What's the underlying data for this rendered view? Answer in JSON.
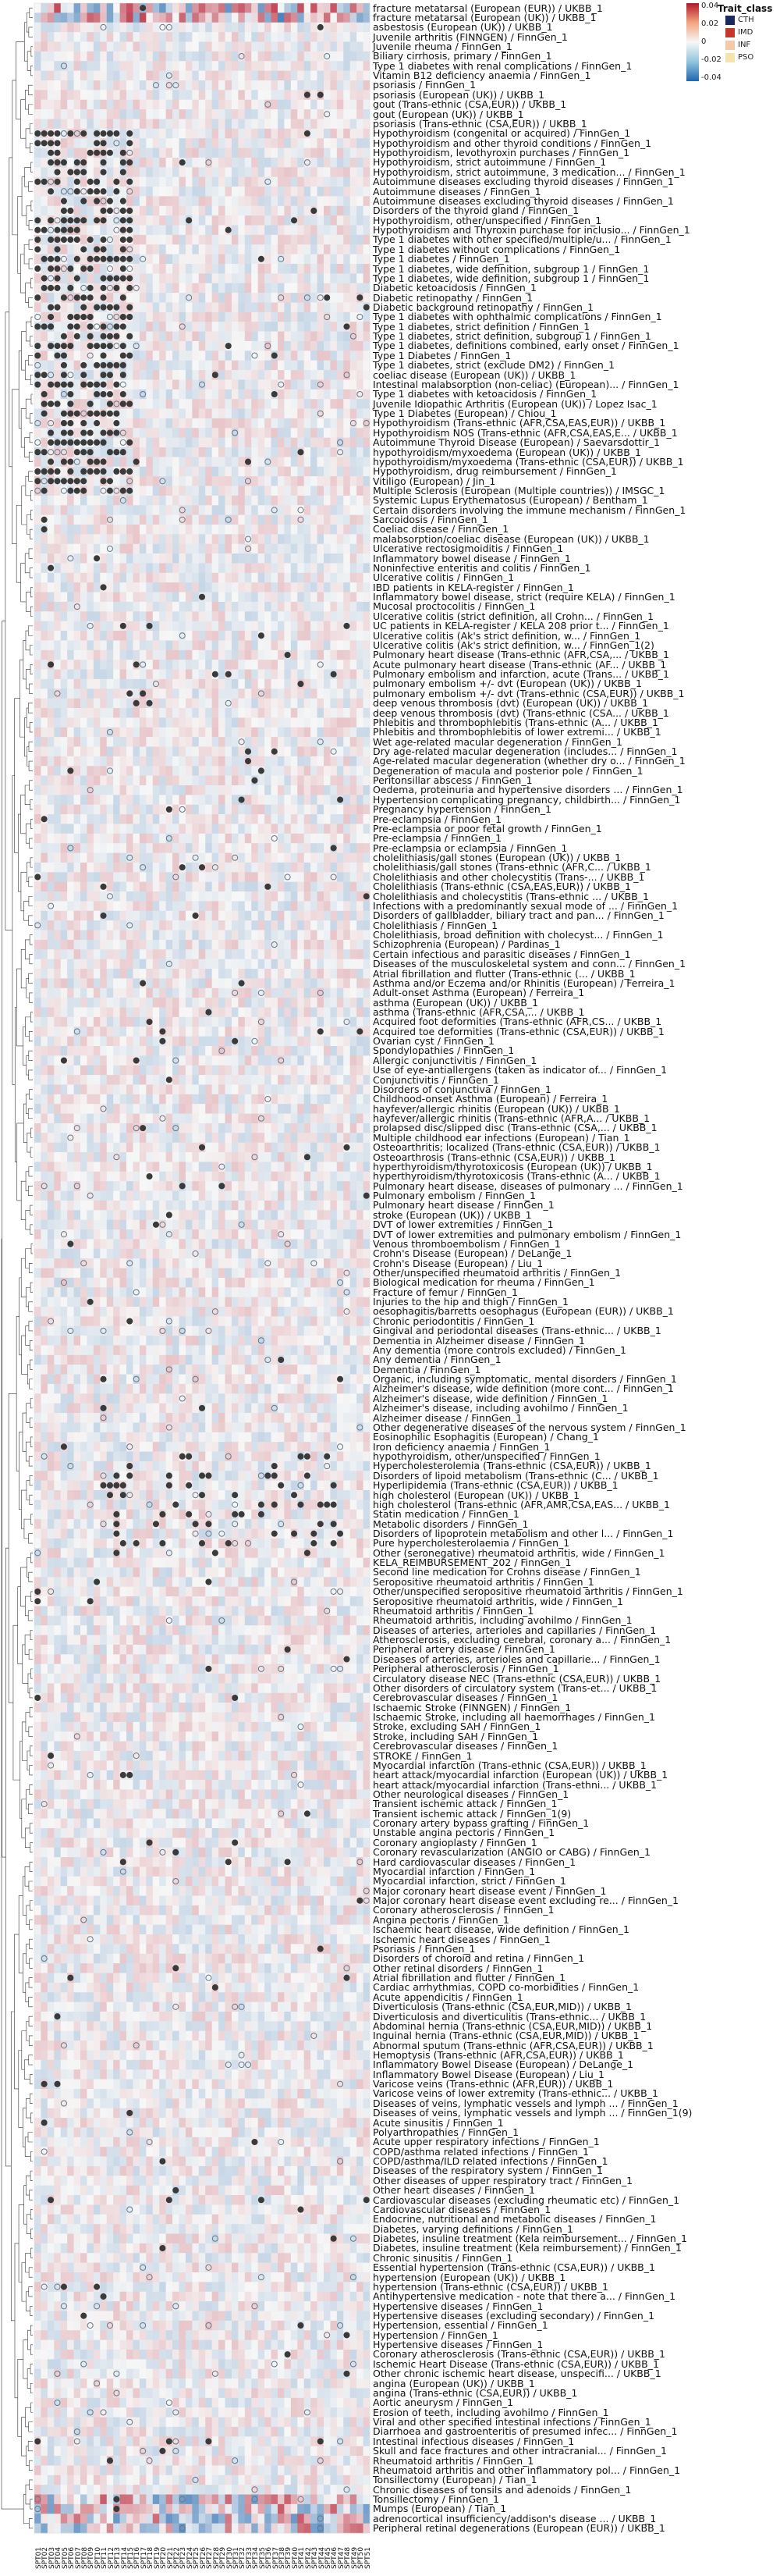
{
  "chart_data": {
    "type": "heatmap",
    "legend_title": "Trait_class",
    "colorbar_ticks": [
      "0.04",
      "0.02",
      "0",
      "-0.02",
      "-0.04"
    ],
    "legend": [
      {
        "name": "CTH",
        "color": "#1a2a5c"
      },
      {
        "name": "IMD",
        "color": "#c0392b"
      },
      {
        "name": "INF",
        "color": "#f3c9a8"
      },
      {
        "name": "PSO",
        "color": "#f5e3b0"
      }
    ],
    "column_prefix": "SPT",
    "n_columns": 51,
    "rows": [
      "fracture metatarsal (European (EUR)) / UKBB_1",
      "fracture metatarsal (European (UK)) / UKBB_1",
      "asbestosis (European (UK)) / UKBB_1",
      "Juvenile arthritis (FINNGEN) / FinnGen_1",
      "Juvenile rheuma / FinnGen_1",
      "Biliary cirrhosis, primary / FinnGen_1",
      "Type 1 diabetes with renal complications / FinnGen_1",
      "Vitamin B12 deficiency anaemia / FinnGen_1",
      "psoriasis / FinnGen_1",
      "psoriasis (European (UK)) / UKBB_1",
      "gout (Trans-ethnic (CSA,EUR)) / UKBB_1",
      "gout (European (UK)) / UKBB_1",
      "psoriasis (Trans-ethnic (CSA,EUR)) / UKBB_1",
      "Hypothyroidism (congenital or acquired) / FinnGen_1",
      "Hypothyroidism and other thyroid conditions / FinnGen_1",
      "Hypothyroidism, levothyroxin purchases / FinnGen_1",
      "Hypothyroidism, strict autoimmune / FinnGen_1",
      "Hypothyroidism, strict autoimmune, 3 medication... / FinnGen_1",
      "Autoimmune diseases excluding thyroid diseases / FinnGen_1",
      "Autoimmune diseases / FinnGen_1",
      "Autoimmune diseases excluding thyroid diseases / FinnGen_1",
      "Disorders of the thyroid gland / FinnGen_1",
      "Hypothyroidism, other/unspecified / FinnGen_1",
      "Hypothyroidism and Thyroxin purchase for inclusio... / FinnGen_1",
      "Type 1 diabetes with other specified/multiple/u... / FinnGen_1",
      "Type 1 diabetes without complications / FinnGen_1",
      "Type 1 diabetes / FinnGen_1",
      "Type 1 diabetes, wide definition, subgroup 1 / FinnGen_1",
      "Type 1 diabetes, wide definition, subgroup 1 / FinnGen_1",
      "Diabetic ketoacidosis / FinnGen_1",
      "Diabetic retinopathy / FinnGen_1",
      "Diabetic background retinopathy / FinnGen_1",
      "Type 1 diabetes with ophthalmic complications / FinnGen_1",
      "Type 1 diabetes, strict definition / FinnGen_1",
      "Type 1 diabetes, strict definition, subgroup 1 / FinnGen_1",
      "Type 1 diabetes, definitions combined, early onset / FinnGen_1",
      "Type 1 Diabetes / FinnGen_1",
      "Type 1 diabetes, strict (exclude DM2) / FinnGen_1",
      "coeliac disease (European (UK)) / UKBB_1",
      "Intestinal malabsorption (non-celiac) (European)... / FinnGen_1",
      "Type 1 diabetes with ketoacidosis / FinnGen_1",
      "Juvenile Idiopathic Arthritis (European (UK)) / Lopez Isac_1",
      "Type 1 Diabetes (European) / Chiou_1",
      "Hypothyroidism (Trans-ethnic (AFR,CSA,EAS,EUR)) / UKBB_1",
      "Hypothyroidism NOS (Trans-ethnic (AFR,CSA,EAS,E... / UKBB_1",
      "Autoimmune Thyroid Disease (European) / Saevarsdottir_1",
      "hypothyroidism/myxoedema (European (UK)) / UKBB_1",
      "hypothyroidism/myxoedema (Trans-ethnic (CSA,EUR)) / UKBB_1",
      "Hypothyroidism, drug reimbursement / FinnGen_1",
      "Vitiligo (European) / Jin_1",
      "Multiple Sclerosis (European (Multiple countries)) / IMSGC_1",
      "Systemic Lupus Erythematosus (European) / Bentham_1",
      "Certain disorders involving the immune mechanism / FinnGen_1",
      "Sarcoidosis / FinnGen_1",
      "Coeliac disease / FinnGen_1",
      "malabsorption/coeliac disease (European (UK)) / UKBB_1",
      "Ulcerative rectosigmoiditis / FinnGen_1",
      "Inflammatory bowel disease / FinnGen_1",
      "Noninfective enteritis and colitis / FinnGen_1",
      "Ulcerative colitis / FinnGen_1",
      "IBD patients in KELA-register / FinnGen_1",
      "Inflammatory bowel disease, strict (require KELA) / FinnGen_1",
      "Mucosal proctocolitis / FinnGen_1",
      "Ulcerative colitis (strict definition, all Crohn... / FinnGen_1",
      "UC patients in KELA-register / KELA 208 prior t... / FinnGen_1",
      "Ulcerative colitis (Ak's strict definition, w... / FinnGen_1",
      "Ulcerative colitis (Ak's strict definition, w... / FinnGen_1(2)",
      "Pulmonary heart disease (Trans-ethnic (AFR,CSA,... / UKBB_1",
      "Acute pulmonary heart disease (Trans-ethnic (AF... / UKBB_1",
      "Pulmonary embolism and infarction, acute (Trans... / UKBB_1",
      "pulmonary embolism +/- dvt (European (UK)) / UKBB_1",
      "pulmonary embolism +/- dvt (Trans-ethnic (CSA,EUR)) / UKBB_1",
      "deep venous thrombosis (dvt) (European (UK)) / UKBB_1",
      "deep venous thrombosis (dvt) (Trans-ethnic (CSA... / UKBB_1",
      "Phlebitis and thrombophlebitis (Trans-ethnic (A... / UKBB_1",
      "Phlebitis and thrombophlebitis of lower extremi... / UKBB_1",
      "Wet age-related macular degeneration / FinnGen_1",
      "Dry age-related macular degeneration (includes... / FinnGen_1",
      "Age-related macular degeneration (whether dry o... / FinnGen_1",
      "Degeneration of macula and posterior pole / FinnGen_1",
      "Peritonsillar abscess / FinnGen_1",
      "Oedema, proteinuria and hypertensive disorders ... / FinnGen_1",
      "Hypertension complicating pregnancy, childbirth... / FinnGen_1",
      "Pregnancy hypertension / FinnGen_1",
      "Pre-eclampsia / FinnGen_1",
      "Pre-eclampsia or poor fetal growth / FinnGen_1",
      "Pre-eclampsia / FinnGen_1",
      "Pre-eclampsia or eclampsia / FinnGen_1",
      "cholelithiasis/gall stones (European (UK)) / UKBB_1",
      "cholelithiasis/gall stones (Trans-ethnic (AFR,C... / UKBB_1",
      "Cholelithiasis and other cholecystitis (Trans-... / UKBB_1",
      "Cholelithiasis (Trans-ethnic (CSA,EAS,EUR)) / UKBB_1",
      "Cholelithiasis and cholecystitis (Trans-ethnic ... / UKBB_1",
      "Infections with a predominantly sexual mode of ... / FinnGen_1",
      "Disorders of gallbladder, biliary tract and pan... / FinnGen_1",
      "Cholelithiasis / FinnGen_1",
      "Cholelithiasis, broad definition with cholecyst... / FinnGen_1",
      "Schizophrenia (European) / Pardinas_1",
      "Certain infectious and parasitic diseases / FinnGen_1",
      "Diseases of the musculoskeletal system and conn... / FinnGen_1",
      "Atrial fibrillation and flutter (Trans-ethnic (... / UKBB_1",
      "Asthma and/or Eczema and/or Rhinitis (European) / Ferreira_1",
      "Adult-onset Asthma (European) / Ferreira_1",
      "asthma (European (UK)) / UKBB_1",
      "asthma (Trans-ethnic (AFR,CSA,... / UKBB_1",
      "Acquired foot deformities (Trans-ethnic (AFR,CS... / UKBB_1",
      "Acquired toe deformities (Trans-ethnic (CSA,EUR)) / UKBB_1",
      "Ovarian cyst / FinnGen_1",
      "Spondylopathies / FinnGen_1",
      "Allergic conjunctivitis / FinnGen_1",
      "Use of eye-antiallergens (taken as indicator of... / FinnGen_1",
      "Conjunctivitis / FinnGen_1",
      "Disorders of conjunctiva / FinnGen_1",
      "Childhood-onset Asthma (European) / Ferreira_1",
      "hayfever/allergic rhinitis (European (UK)) / UKBB_1",
      "hayfever/allergic rhinitis (Trans-ethnic (AFR,A... / UKBB_1",
      "prolapsed disc/slipped disc (Trans-ethnic (CSA,... / UKBB_1",
      "Multiple childhood ear infections (European) / Tian_1",
      "Osteoarthritis; localized (Trans-ethnic (CSA,EUR)) / UKBB_1",
      "Osteoarthrosis (Trans-ethnic (CSA,EUR)) / UKBB_1",
      "hyperthyroidism/thyrotoxicosis (European (UK)) / UKBB_1",
      "hyperthyroidism/thyrotoxicosis (Trans-ethnic (A... / UKBB_1",
      "Pulmonary heart disease, diseases of pulmonary ... / FinnGen_1",
      "Pulmonary embolism / FinnGen_1",
      "Pulmonary heart disease / FinnGen_1",
      "stroke (European (UK)) / UKBB_1",
      "DVT of lower extremities / FinnGen_1",
      "DVT of lower extremities and pulmonary embolism / FinnGen_1",
      "Venous thromboembolism / FinnGen_1",
      "Crohn's Disease (European) / DeLange_1",
      "Crohn's Disease (European) / Liu_1",
      "Other/unspecified rheumatoid arthritis / FinnGen_1",
      "Biological medication for rheuma / FinnGen_1",
      "Fracture of femur / FinnGen_1",
      "Injuries to the hip and thigh / FinnGen_1",
      "oesophagitis/barretts oesophagus (European (EUR)) / UKBB_1",
      "Chronic periodontitis / FinnGen_1",
      "Gingival and periodontal diseases (Trans-ethnic... / UKBB_1",
      "Dementia in Alzheimer disease / FinnGen_1",
      "Any dementia (more controls excluded) / FinnGen_1",
      "Any dementia / FinnGen_1",
      "Dementia / FinnGen_1",
      "Organic, including symptomatic, mental disorders / FinnGen_1",
      "Alzheimer's disease, wide definition (more cont... / FinnGen_1",
      "Alzheimer's disease, wide definition / FinnGen_1",
      "Alzheimer's disease, including avohilmo / FinnGen_1",
      "Alzheimer disease / FinnGen_1",
      "Other degenerative diseases of the nervous system / FinnGen_1",
      "Eosinophilic Esophagitis (European) / Chang_1",
      "Iron deficiency anaemia / FinnGen_1",
      "hypothyroidism, other/unspecified / FinnGen_1",
      "Hypercholesterolemia (Trans-ethnic (CSA,EUR)) / UKBB_1",
      "Disorders of lipoid metabolism (Trans-ethnic (C... / UKBB_1",
      "Hyperlipidemia (Trans-ethnic (CSA,EUR)) / UKBB_1",
      "high cholesterol (European (UK)) / UKBB_1",
      "high cholesterol (Trans-ethnic (AFR,AMR,CSA,EAS... / UKBB_1",
      "Statin medication / FinnGen_1",
      "Metabolic disorders / FinnGen_1",
      "Disorders of lipoprotein metabolism and other l... / FinnGen_1",
      "Pure hypercholesterolaemia / FinnGen_1",
      "Other (seronegative) rheumatoid arthritis, wide / FinnGen_1",
      "KELA_REIMBURSEMENT_202 / FinnGen_1",
      "Second line medication for Crohns disease / FinnGen_1",
      "Seropositive rheumatoid arthritis / FinnGen_1",
      "Other/unspecified seropositive rheumatoid arthritis / FinnGen_1",
      "Seropositive rheumatoid arthritis, wide / FinnGen_1",
      "Rheumatoid arthritis / FinnGen_1",
      "Rheumatoid arthritis, including avohilmo / FinnGen_1",
      "Diseases of arteries, arterioles and capillaries / FinnGen_1",
      "Atherosclerosis, excluding cerebral, coronary a... / FinnGen_1",
      "Peripheral artery disease / FinnGen_1",
      "Diseases of arteries, arterioles and capillarie... / FinnGen_1",
      "Peripheral atherosclerosis / FinnGen_1",
      "Circulatory disease NEC (Trans-ethnic (CSA,EUR)) / UKBB_1",
      "Other disorders of circulatory system (Trans-et... / UKBB_1",
      "Cerebrovascular diseases / FinnGen_1",
      "Ischaemic Stroke (FINNGEN) / FinnGen_1",
      "Ischaemic Stroke, including all haemorrhages / FinnGen_1",
      "Stroke, excluding SAH / FinnGen_1",
      "Stroke, including SAH / FinnGen_1",
      "Cerebrovascular diseases / FinnGen_1",
      "STROKE / FinnGen_1",
      "Myocardial infarction (Trans-ethnic (CSA,EUR)) / UKBB_1",
      "heart attack/myocardial infarction (European (UK)) / UKBB_1",
      "heart attack/myocardial infarction (Trans-ethni... / UKBB_1",
      "Other neurological diseases / FinnGen_1",
      "Transient ischemic attack / FinnGen_1",
      "Transient ischemic attack / FinnGen_1(9)",
      "Coronary artery bypass grafting / FinnGen_1",
      "Unstable angina pectoris / FinnGen_1",
      "Coronary angioplasty / FinnGen_1",
      "Coronary revascularization (ANGIO or CABG) / FinnGen_1",
      "Hard cardiovascular diseases / FinnGen_1",
      "Myocardial infarction / FinnGen_1",
      "Myocardial infarction, strict / FinnGen_1",
      "Major coronary heart disease event / FinnGen_1",
      "Major coronary heart disease event excluding re... / FinnGen_1",
      "Coronary atherosclerosis / FinnGen_1",
      "Angina pectoris / FinnGen_1",
      "Ischaemic heart disease, wide definition / FinnGen_1",
      "Ischemic heart diseases / FinnGen_1",
      "Psoriasis / FinnGen_1",
      "Disorders of choroid and retina / FinnGen_1",
      "Other retinal disorders / FinnGen_1",
      "Atrial fibrillation and flutter / FinnGen_1",
      "Cardiac arrhythmias, COPD co-morbidities / FinnGen_1",
      "Acute appendicitis / FinnGen_1",
      "Diverticulosis (Trans-ethnic (CSA,EUR,MID)) / UKBB_1",
      "Diverticulosis and diverticulitis (Trans-ethnic... / UKBB_1",
      "Abdominal hernia (Trans-ethnic (CSA,EUR,MID)) / UKBB_1",
      "Inguinal hernia (Trans-ethnic (CSA,EUR,MID)) / UKBB_1",
      "Abnormal sputum (Trans-ethnic (AFR,CSA,EUR)) / UKBB_1",
      "Hemoptysis (Trans-ethnic (AFR,CSA,EUR)) / UKBB_1",
      "Inflammatory Bowel Disease (European) / DeLange_1",
      "Inflammatory Bowel Disease (European) / Liu_1",
      "Varicose veins (Trans-ethnic (AFR,EUR)) / UKBB_1",
      "Varicose veins of lower extremity (Trans-ethnic... / UKBB_1",
      "Diseases of veins, lymphatic vessels and lymph ... / FinnGen_1",
      "Diseases of veins, lymphatic vessels and lymph ... / FinnGen_1(9)",
      "Acute sinusitis / FinnGen_1",
      "Polyarthropathies / FinnGen_1",
      "Acute upper respiratory infections / FinnGen_1",
      "COPD/asthma related infections / FinnGen_1",
      "COPD/asthma/ILD related infections / FinnGen_1",
      "Diseases of the respiratory system / FinnGen_1",
      "Other diseases of upper respiratory tract / FinnGen_1",
      "Other heart diseases / FinnGen_1",
      "Cardiovascular diseases (excluding rheumatic etc) / FinnGen_1",
      "Cardiovascular diseases / FinnGen_1",
      "Endocrine, nutritional and metabolic diseases / FinnGen_1",
      "Diabetes, varying definitions / FinnGen_1",
      "Diabetes, insuline treatment (Kela reimbursement... / FinnGen_1",
      "Diabetes, insuline treatment (Kela reimbursement) / FinnGen_1",
      "Chronic sinusitis / FinnGen_1",
      "Essential hypertension (Trans-ethnic (CSA,EUR)) / UKBB_1",
      "hypertension (European (UK)) / UKBB_1",
      "hypertension (Trans-ethnic (CSA,EUR)) / UKBB_1",
      "Antihypertensive medication - note that there a... / FinnGen_1",
      "Hypertensive diseases / FinnGen_1",
      "Hypertensive diseases (excluding secondary) / FinnGen_1",
      "Hypertension, essential / FinnGen_1",
      "Hypertension / FinnGen_1",
      "Hypertensive diseases / FinnGen_1",
      "Coronary atherosclerosis (Trans-ethnic (CSA,EUR)) / UKBB_1",
      "Ischemic Heart Disease (Trans-ethnic (CSA,EUR)) / UKBB_1",
      "Other chronic ischemic heart disease, unspecifi... / UKBB_1",
      "angina (European (UK)) / UKBB_1",
      "angina (Trans-ethnic (CSA,EUR)) / UKBB_1",
      "Aortic aneurysm / FinnGen_1",
      "Erosion of teeth, including avohilmo / FinnGen_1",
      "Viral and other specified intestinal infections / FinnGen_1",
      "Diarrhoea and gastroenteritis of presumed infec... / FinnGen_1",
      "Intestinal infectious diseases / FinnGen_1",
      "Skull and face fractures and other intracranial... / FinnGen_1",
      "Rheumatoid arthritis / FinnGen_1",
      "Rheumatoid arthritis and other inflammatory pol... / FinnGen_1",
      "Tonsillectomy (European) / Tian_1",
      "Chronic diseases of tonsils and adenoids / FinnGen_1",
      "Tonsillectomy / FinnGen_1",
      "Mumps (European) / Tian_1",
      "adrenocortical insufficiency/addison's disease ... / UKBB_1",
      "Peripheral retinal degenerations (European (EUR)) / UKBB_1"
    ]
  }
}
